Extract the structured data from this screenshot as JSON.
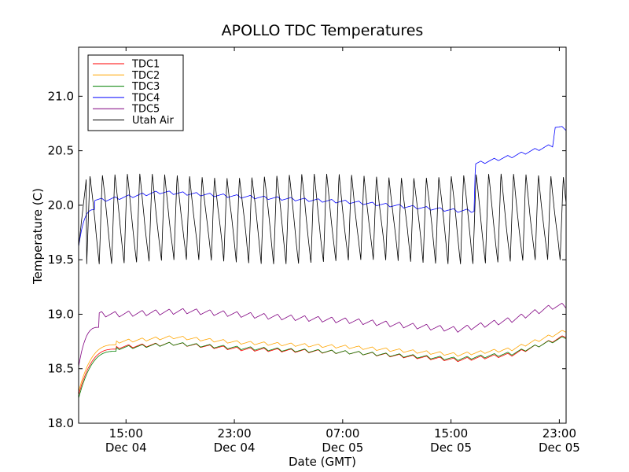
{
  "chart_data": {
    "type": "line",
    "title": "APOLLO TDC Temperatures",
    "xlabel": "Date (GMT)",
    "ylabel": "Temperature (C)",
    "ylim": [
      18.0,
      21.45
    ],
    "xlim_hours": [
      0,
      36
    ],
    "yticks": [
      "18.0",
      "18.5",
      "19.0",
      "19.5",
      "20.0",
      "20.5",
      "21.0"
    ],
    "ytick_values": [
      18.0,
      18.5,
      19.0,
      19.5,
      20.0,
      20.5,
      21.0
    ],
    "xticks": [
      {
        "time": "15:00",
        "date": "Dec 04",
        "hour": 3.5
      },
      {
        "time": "23:00",
        "date": "Dec 04",
        "hour": 11.5
      },
      {
        "time": "07:00",
        "date": "Dec 05",
        "hour": 19.5
      },
      {
        "time": "15:00",
        "date": "Dec 05",
        "hour": 27.5
      },
      {
        "time": "23:00",
        "date": "Dec 05",
        "hour": 35.5
      }
    ],
    "legend_position": "top-left",
    "series": [
      {
        "name": "TDC1",
        "color": "#ff0000",
        "start_hour": 0,
        "end_hour": 36,
        "start_value": 18.26,
        "rise_end_hour": 2.8,
        "plateau": 18.68,
        "drift_points": [
          [
            3,
            18.7
          ],
          [
            7,
            18.73
          ],
          [
            12,
            18.68
          ],
          [
            20,
            18.65
          ],
          [
            28,
            18.58
          ],
          [
            32,
            18.63
          ],
          [
            36,
            18.8
          ]
        ],
        "wave_amplitude": 0.03,
        "wave_period_hours": 1
      },
      {
        "name": "TDC2",
        "color": "#ffa500",
        "start_hour": 0,
        "end_hour": 36,
        "start_value": 18.29,
        "rise_end_hour": 2.8,
        "plateau": 18.72,
        "drift_points": [
          [
            3,
            18.75
          ],
          [
            7,
            18.79
          ],
          [
            12,
            18.74
          ],
          [
            20,
            18.7
          ],
          [
            28,
            18.63
          ],
          [
            32,
            18.68
          ],
          [
            36,
            18.85
          ]
        ],
        "wave_amplitude": 0.03,
        "wave_period_hours": 1
      },
      {
        "name": "TDC3",
        "color": "#008000",
        "start_hour": 0,
        "end_hour": 36,
        "start_value": 18.23,
        "rise_end_hour": 2.8,
        "plateau": 18.66,
        "drift_points": [
          [
            3,
            18.69
          ],
          [
            7,
            18.73
          ],
          [
            12,
            18.69
          ],
          [
            20,
            18.65
          ],
          [
            28,
            18.59
          ],
          [
            32,
            18.64
          ],
          [
            36,
            18.79
          ]
        ],
        "wave_amplitude": 0.03,
        "wave_period_hours": 1
      },
      {
        "name": "TDC4",
        "color": "#0000ff",
        "start_hour": 0,
        "end_hour": 36,
        "start_value": 19.62,
        "rise_end_hour": 1.2,
        "plateau": 19.96,
        "drift_points": [
          [
            2,
            20.05
          ],
          [
            6,
            20.12
          ],
          [
            12,
            20.08
          ],
          [
            20,
            20.03
          ],
          [
            28,
            19.95
          ],
          [
            29.2,
            19.95
          ],
          [
            29.3,
            20.38
          ],
          [
            32,
            20.45
          ],
          [
            35,
            20.55
          ],
          [
            35.2,
            20.72
          ],
          [
            36,
            20.7
          ]
        ],
        "wave_amplitude": 0.03,
        "wave_period_hours": 1
      },
      {
        "name": "TDC5",
        "color": "#800080",
        "start_hour": 0,
        "end_hour": 36,
        "start_value": 18.52,
        "rise_end_hour": 1.5,
        "plateau": 18.88,
        "drift_points": [
          [
            3,
            19.0
          ],
          [
            8,
            19.03
          ],
          [
            14,
            18.98
          ],
          [
            20,
            18.94
          ],
          [
            28,
            18.86
          ],
          [
            32,
            18.95
          ],
          [
            35,
            19.07
          ],
          [
            36,
            19.08
          ]
        ],
        "wave_amplitude": 0.05,
        "wave_period_hours": 1
      },
      {
        "name": "Utah Air",
        "color": "#000000",
        "start_hour": 0,
        "end_hour": 36,
        "min_value": 19.48,
        "max_value": 20.28,
        "cycle_period_hours": 0.92,
        "cycle_start_hour": 0.6,
        "first_value": 19.62
      }
    ]
  }
}
